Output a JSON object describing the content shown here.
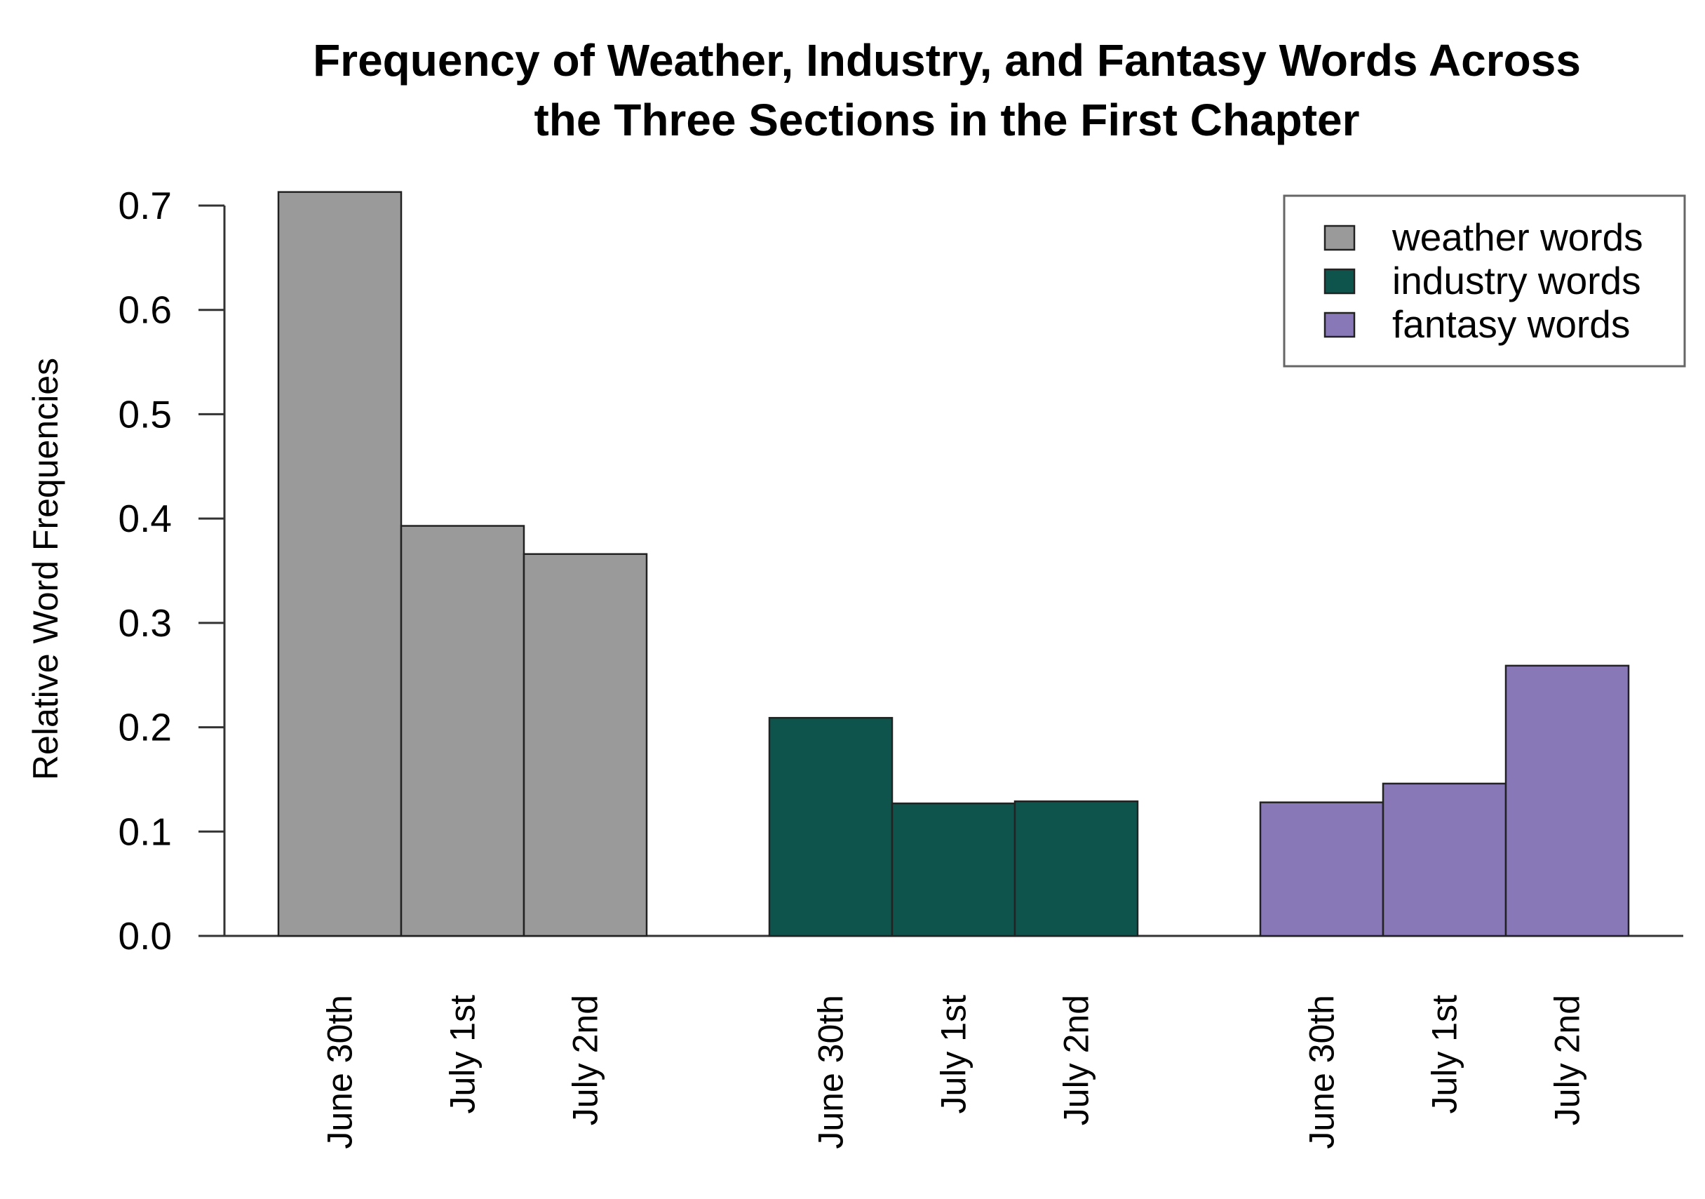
{
  "chart_data": {
    "type": "bar",
    "title": [
      "Frequency of Weather, Industry, and Fantasy Words Across",
      "the Three Sections in the First Chapter"
    ],
    "ylabel": "Relative Word Frequencies",
    "xlabel": "",
    "ylim": [
      0,
      0.7
    ],
    "yticks": [
      "0.0",
      "0.1",
      "0.2",
      "0.3",
      "0.4",
      "0.5",
      "0.6",
      "0.7"
    ],
    "legend_position": "top-right",
    "series": [
      {
        "name": "weather words",
        "color": "#9a9a9a",
        "categories": [
          "June 30th",
          "July 1st",
          "July 2nd"
        ],
        "values": [
          0.713,
          0.393,
          0.366
        ]
      },
      {
        "name": "industry words",
        "color": "#0f544c",
        "categories": [
          "June 30th",
          "July 1st",
          "July 2nd"
        ],
        "values": [
          0.209,
          0.127,
          0.129
        ]
      },
      {
        "name": "fantasy words",
        "color": "#8878b7",
        "categories": [
          "June 30th",
          "July 1st",
          "July 2nd"
        ],
        "values": [
          0.128,
          0.146,
          0.259
        ]
      }
    ]
  }
}
